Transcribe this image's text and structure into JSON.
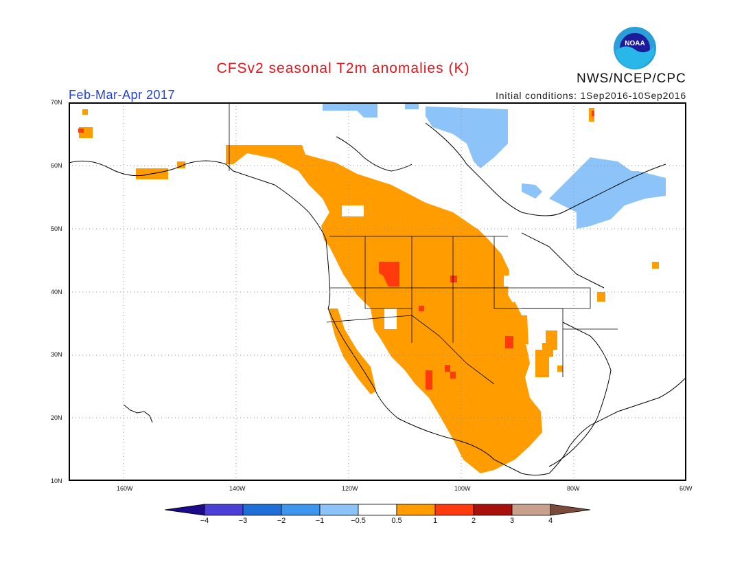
{
  "header": {
    "title": "CFSv2 seasonal T2m anomalies (K)",
    "agency": "NWS/NCEP/CPC",
    "logo_text": "NOAA",
    "period": "Feb-Mar-Apr 2017",
    "initial_conditions": "Initial conditions: 1Sep2016-10Sep2016"
  },
  "axes": {
    "lon_ticks": [
      "160W",
      "140W",
      "120W",
      "100W",
      "80W",
      "60W"
    ],
    "lat_ticks": [
      "70N",
      "60N",
      "50N",
      "40N",
      "30N",
      "20N",
      "10N"
    ],
    "lon_range": [
      -172,
      -60
    ],
    "lat_range": [
      10,
      70
    ]
  },
  "colorbar": {
    "tick_labels": [
      "-4",
      "-3",
      "-2",
      "-1",
      "-0.5",
      "0.5",
      "1",
      "2",
      "3",
      "4"
    ],
    "colors": [
      "#1b0a8a",
      "#4b3fd6",
      "#1f6fd8",
      "#3f96ee",
      "#8cc3f8",
      "#ffffff",
      "#fe9c00",
      "#ff3a0c",
      "#a8100c",
      "#c9a08c",
      "#7a4a3a"
    ]
  },
  "legend_colors": {
    "warm_05_1": "#fe9c00",
    "warm_1_2": "#ff3a0c",
    "cool_-1_-05": "#8cc3f8"
  }
}
